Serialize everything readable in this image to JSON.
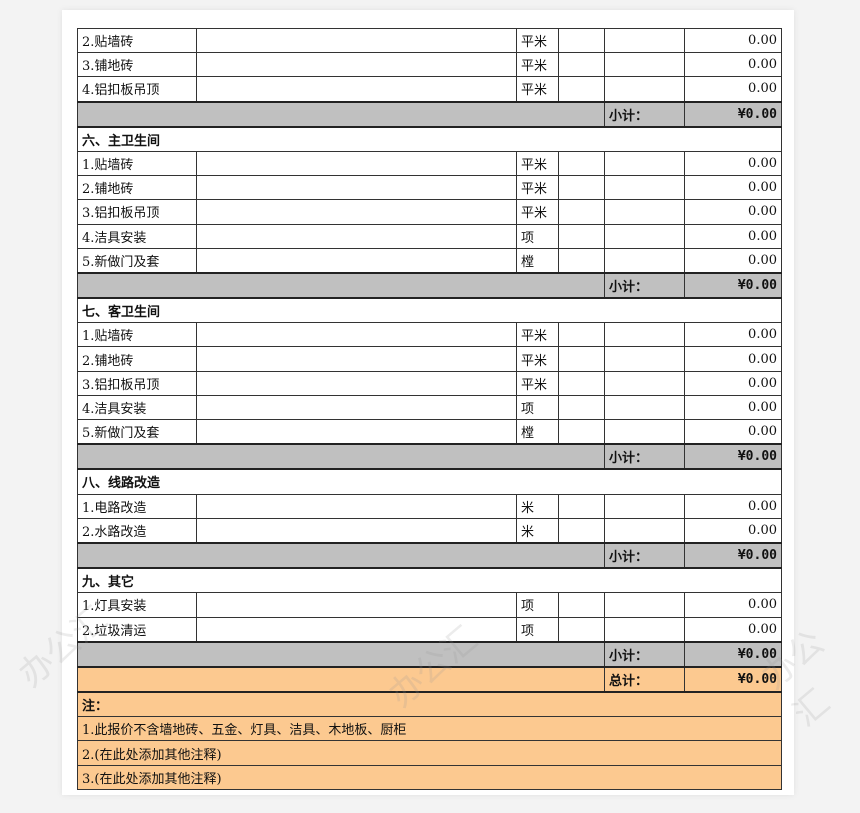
{
  "watermark": "办公汇",
  "subtotal_label": "小计：",
  "total_label": "总计：",
  "subtotal_value": "¥0.00",
  "total_value": "¥0.00",
  "rows": [
    {
      "type": "item",
      "name": "2.贴墙砖",
      "unit": "平米",
      "amount": "0.00"
    },
    {
      "type": "item",
      "name": "3.铺地砖",
      "unit": "平米",
      "amount": "0.00"
    },
    {
      "type": "item",
      "name": "4.铝扣板吊顶",
      "unit": "平米",
      "amount": "0.00"
    },
    {
      "type": "sub"
    },
    {
      "type": "sec",
      "name": "六、主卫生间"
    },
    {
      "type": "item",
      "name": "1.贴墙砖",
      "unit": "平米",
      "amount": "0.00"
    },
    {
      "type": "item",
      "name": "2.铺地砖",
      "unit": "平米",
      "amount": "0.00"
    },
    {
      "type": "item",
      "name": "3.铝扣板吊顶",
      "unit": "平米",
      "amount": "0.00"
    },
    {
      "type": "item",
      "name": "4.洁具安装",
      "unit": "项",
      "amount": "0.00"
    },
    {
      "type": "item",
      "name": "5.新做门及套",
      "unit": "樘",
      "amount": "0.00"
    },
    {
      "type": "sub"
    },
    {
      "type": "sec",
      "name": "七、客卫生间"
    },
    {
      "type": "item",
      "name": "1.贴墙砖",
      "unit": "平米",
      "amount": "0.00"
    },
    {
      "type": "item",
      "name": "2.铺地砖",
      "unit": "平米",
      "amount": "0.00"
    },
    {
      "type": "item",
      "name": "3.铝扣板吊顶",
      "unit": "平米",
      "amount": "0.00"
    },
    {
      "type": "item",
      "name": "4.洁具安装",
      "unit": "项",
      "amount": "0.00"
    },
    {
      "type": "item",
      "name": "5.新做门及套",
      "unit": "樘",
      "amount": "0.00"
    },
    {
      "type": "sub"
    },
    {
      "type": "sec",
      "name": "八、线路改造"
    },
    {
      "type": "item",
      "name": "1.电路改造",
      "unit": "米",
      "amount": "0.00"
    },
    {
      "type": "item",
      "name": "2.水路改造",
      "unit": "米",
      "amount": "0.00"
    },
    {
      "type": "sub"
    },
    {
      "type": "sec",
      "name": "九、其它"
    },
    {
      "type": "item",
      "name": "1.灯具安装",
      "unit": "项",
      "amount": "0.00"
    },
    {
      "type": "item",
      "name": "2.垃圾清运",
      "unit": "项",
      "amount": "0.00"
    },
    {
      "type": "sub"
    },
    {
      "type": "total"
    },
    {
      "type": "notehead",
      "name": "注："
    },
    {
      "type": "note",
      "name": "1.此报价不含墙地砖、五金、灯具、洁具、木地板、厨柜"
    },
    {
      "type": "note",
      "name": "2.(在此处添加其他注释)"
    },
    {
      "type": "note",
      "name": "3.(在此处添加其他注释)"
    }
  ]
}
